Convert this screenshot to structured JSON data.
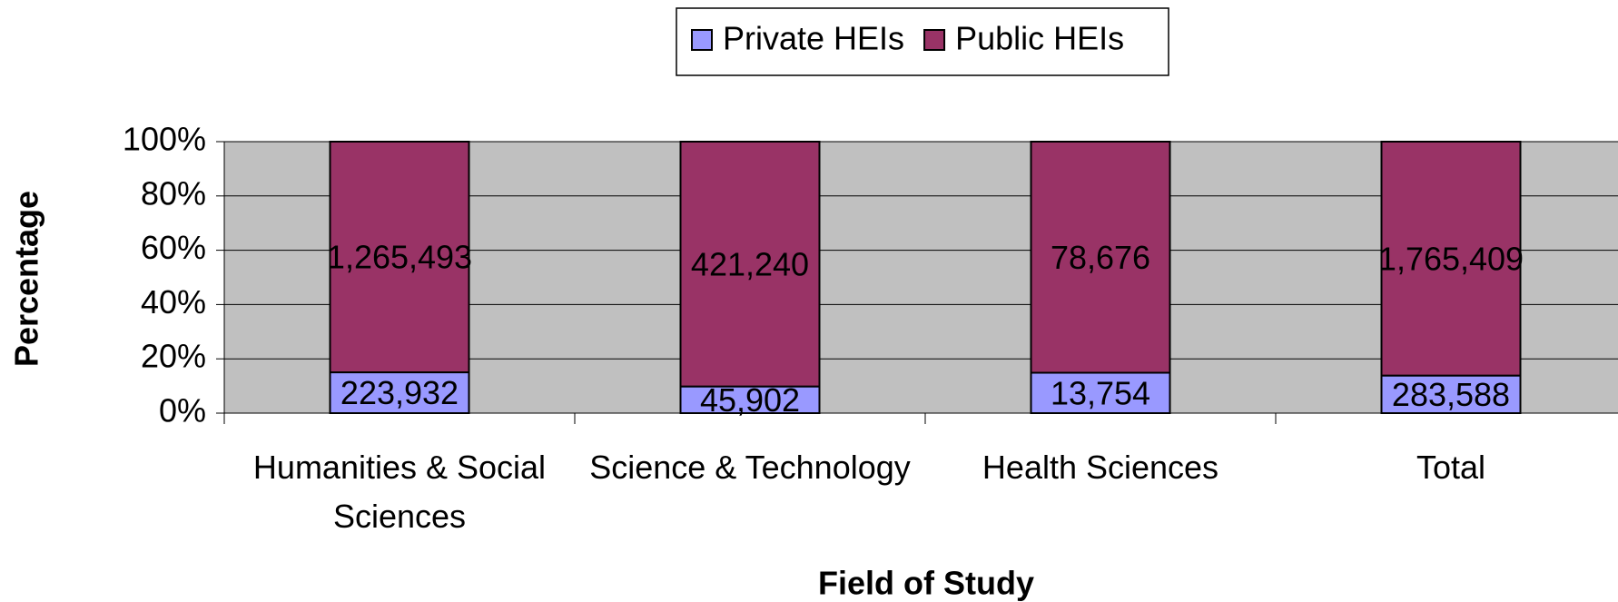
{
  "chart_data": {
    "type": "bar",
    "stacking": "percent",
    "x_label": "Field of Study",
    "y_label": "Percentage",
    "categories": [
      "Humanities & Social Sciences",
      "Science & Technology",
      "Health Sciences",
      "Total"
    ],
    "series": [
      {
        "name": "Private HEIs",
        "color": "#9999ff",
        "values": [
          223932,
          45902,
          13754,
          283588
        ],
        "value_labels": [
          "223,932",
          "45,902",
          "13,754",
          "283,588"
        ]
      },
      {
        "name": "Public HEIs",
        "color": "#993366",
        "values": [
          1265493,
          421240,
          78676,
          1765409
        ],
        "value_labels": [
          "1,265,493",
          "421,240",
          "78,676",
          "1,765,409"
        ]
      }
    ],
    "ylim": [
      0,
      100
    ],
    "yticks": [
      {
        "value": 0,
        "label": "0%"
      },
      {
        "value": 20,
        "label": "20%"
      },
      {
        "value": 40,
        "label": "40%"
      },
      {
        "value": 60,
        "label": "60%"
      },
      {
        "value": 80,
        "label": "80%"
      },
      {
        "value": 100,
        "label": "100%"
      }
    ],
    "grid": true,
    "legend": "top",
    "plot_background": "#c0c0c0"
  }
}
